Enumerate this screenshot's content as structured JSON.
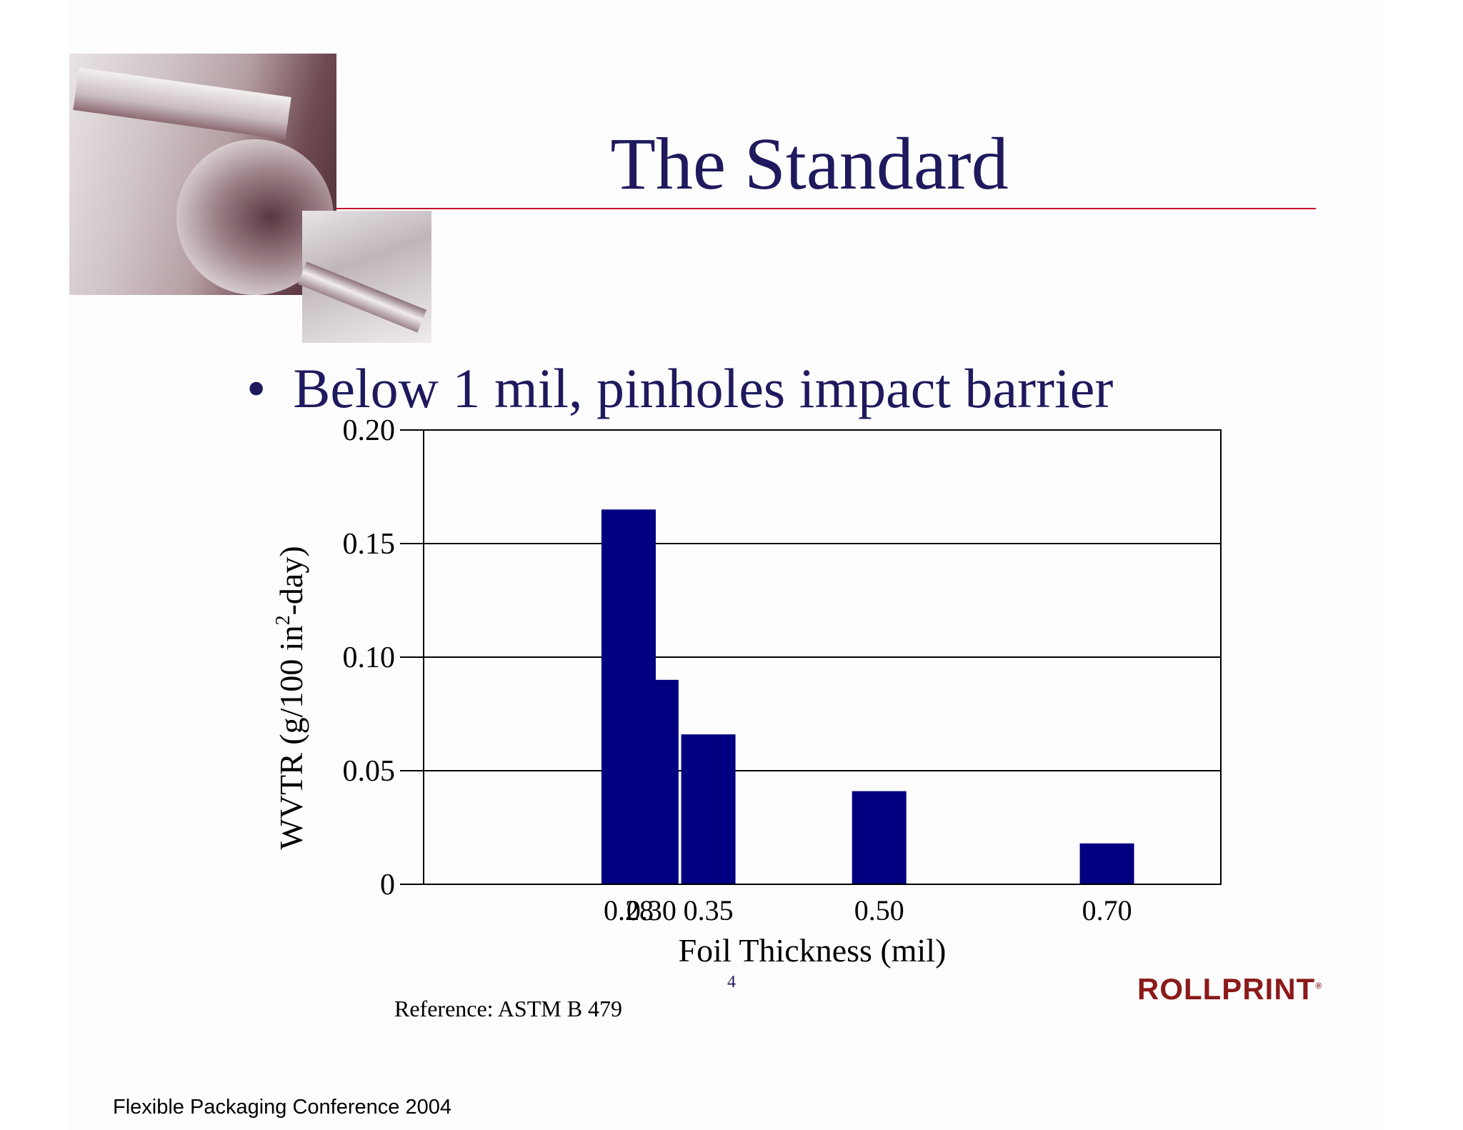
{
  "slide": {
    "title": "The Standard",
    "bullet": "Below 1 mil, pinholes impact barrier",
    "bullet_marker": "•",
    "reference": "Reference: ASTM B 479",
    "page_number": "4",
    "footer": "Flexible Packaging Conference 2004",
    "logo_text": "ROLLPRINT",
    "logo_mark": "®",
    "accent_color": "#c8102e",
    "title_color": "#1f1a5e",
    "logo_color": "#8b1a1a"
  },
  "chart_data": {
    "type": "bar",
    "categories": [
      "0.28",
      "0.30",
      "0.35",
      "0.50",
      "0.70"
    ],
    "x": [
      0.28,
      0.3,
      0.35,
      0.5,
      0.7
    ],
    "values": [
      0.165,
      0.09,
      0.066,
      0.041,
      0.018
    ],
    "xlabel": "Foil Thickness (mil)",
    "ylabel_main": "WVTR (g/100 in",
    "ylabel_sup": "2",
    "ylabel_end": "-day)",
    "ylim": [
      0,
      0.2
    ],
    "yticks": [
      0,
      0.05,
      0.1,
      0.15,
      0.2
    ],
    "ytick_labels": [
      "0",
      "0.05",
      "0.10",
      "0.15",
      "0.20"
    ],
    "grid": true,
    "bar_color": "#000080"
  }
}
